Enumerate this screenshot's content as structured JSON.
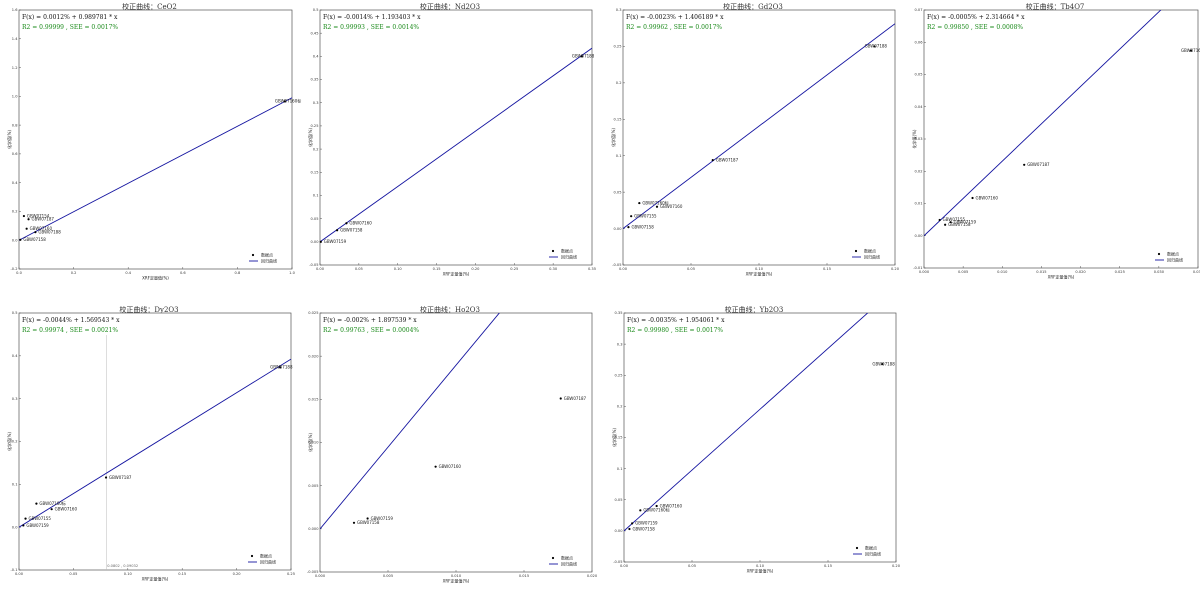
{
  "legend": {
    "points_label": "数据点",
    "line_label": "回归曲线"
  },
  "colors": {
    "line": "#1414a0",
    "formula": "#111111",
    "stats": "#1a8a1a",
    "frame": "#555555",
    "point": "#000000"
  },
  "chart_data": [
    {
      "type": "scatter",
      "title": "校正曲线：CeO2",
      "formula": "F(x) = 0.0012% + 0.989781 * x",
      "stats": "R2 = 0.99999 , SEE = 0.0017%",
      "xlabel": "XRF定量值(%)",
      "ylabel": "化学值(%)",
      "xlim": [
        0,
        1.0
      ],
      "ylim": [
        -0.2,
        1.6
      ],
      "xticks": [
        "0.0",
        "0.2",
        "0.4",
        "0.6",
        "0.8",
        "1.0"
      ],
      "yticks": [
        "-0.2",
        "0.0",
        "0.2",
        "0.4",
        "0.6",
        "0.8",
        "1.0",
        "1.2",
        "1.4",
        "1.6"
      ],
      "line": {
        "intercept": 0.0012,
        "slope": 0.989781
      },
      "points": [
        {
          "label": "GBW07154",
          "x": 0.018,
          "y": 0.168
        },
        {
          "label": "GBW07187",
          "x": 0.035,
          "y": 0.146
        },
        {
          "label": "GBW07160",
          "x": 0.028,
          "y": 0.08
        },
        {
          "label": "GBW07188",
          "x": 0.06,
          "y": 0.056
        },
        {
          "label": "GBW07158",
          "x": 0.005,
          "y": 0.003
        },
        {
          "label": "GBW07160标",
          "x": 0.974,
          "y": 0.965
        }
      ]
    },
    {
      "type": "scatter",
      "title": "校正曲线：Nd2O3",
      "formula": "F(x) = -0.0014% + 1.193403 * x",
      "stats": "R2 = 0.99993 , SEE = 0.0014%",
      "xlabel": "XRF定量值(%)",
      "ylabel": "化学值(%)",
      "xlim": [
        0,
        0.35
      ],
      "ylim": [
        -0.05,
        0.5
      ],
      "xticks": [
        "0.00",
        "0.05",
        "0.10",
        "0.15",
        "0.20",
        "0.25",
        "0.30",
        "0.35"
      ],
      "yticks": [
        "-0.05",
        "0.00",
        "0.05",
        "0.1",
        "0.15",
        "0.2",
        "0.25",
        "0.3",
        "0.35",
        "0.4",
        "0.45",
        "0.5"
      ],
      "line": {
        "intercept": -0.0014,
        "slope": 1.193403
      },
      "points": [
        {
          "label": "GBW07158",
          "x": 0.022,
          "y": 0.025
        },
        {
          "label": "GBW07160",
          "x": 0.034,
          "y": 0.04
        },
        {
          "label": "GBW07159",
          "x": 0.001,
          "y": 0.0
        },
        {
          "label": "GBW07188",
          "x": 0.337,
          "y": 0.4
        }
      ]
    },
    {
      "type": "scatter",
      "title": "校正曲线：Gd2O3",
      "formula": "F(x) = -0.0023% + 1.406189 * x",
      "stats": "R2 = 0.99962 , SEE = 0.0017%",
      "xlabel": "XRF定量值(%)",
      "ylabel": "化学值(%)",
      "xlim": [
        0,
        0.2
      ],
      "ylim": [
        -0.05,
        0.3
      ],
      "xticks": [
        "0.00",
        "0.05",
        "0.10",
        "0.15",
        "0.20"
      ],
      "yticks": [
        "-0.05",
        "0.00",
        "0.05",
        "0.1",
        "0.15",
        "0.2",
        "0.25",
        "0.3"
      ],
      "line": {
        "intercept": -0.0023,
        "slope": 1.406189
      },
      "points": [
        {
          "label": "GBW07188",
          "x": 0.185,
          "y": 0.25
        },
        {
          "label": "GBW07187",
          "x": 0.066,
          "y": 0.094
        },
        {
          "label": "GBW07160标",
          "x": 0.012,
          "y": 0.035
        },
        {
          "label": "GBW07160",
          "x": 0.025,
          "y": 0.03
        },
        {
          "label": "GBW07155",
          "x": 0.006,
          "y": 0.017
        },
        {
          "label": "GBW07158",
          "x": 0.004,
          "y": 0.002
        }
      ]
    },
    {
      "type": "scatter",
      "title": "校正曲线：Tb4O7",
      "formula": "F(x) = -0.0005% + 2.314664 * x",
      "stats": "R2 = 0.99850 , SEE = 0.0008%",
      "xlabel": "XRF定量值(%)",
      "ylabel": "化学值(%)",
      "xlim": [
        0,
        0.035
      ],
      "ylim": [
        -0.01,
        0.07
      ],
      "xticks": [
        "0.000",
        "0.005",
        "0.010",
        "0.015",
        "0.020",
        "0.025",
        "0.030",
        "0.035"
      ],
      "yticks": [
        "-0.01",
        "0.00",
        "0.01",
        "0.02",
        "0.03",
        "0.04",
        "0.05",
        "0.06",
        "0.07"
      ],
      "line": {
        "intercept": -0.0005,
        "slope": 2.314664
      },
      "points": [
        {
          "label": "GBW07160标",
          "x": 0.0341,
          "y": 0.0574
        },
        {
          "label": "GBW07187",
          "x": 0.0128,
          "y": 0.022
        },
        {
          "label": "GBW07160",
          "x": 0.0062,
          "y": 0.0117
        },
        {
          "label": "GBW07155",
          "x": 0.002,
          "y": 0.0049
        },
        {
          "label": "GBW07158",
          "x": 0.0027,
          "y": 0.0034
        },
        {
          "label": "GBW07159",
          "x": 0.0034,
          "y": 0.0042
        }
      ]
    },
    {
      "type": "scatter",
      "title": "校正曲线：Dy2O3",
      "formula": "F(x) = -0.0044% + 1.569543 * x",
      "stats": "R2 = 0.99974 , SEE = 0.0021%",
      "xlabel": "XRF定量值(%)",
      "ylabel": "化学值(%)",
      "xlim": [
        0,
        0.25
      ],
      "ylim": [
        -0.1,
        0.5
      ],
      "xticks": [
        "0.00",
        "0.05",
        "0.10",
        "0.15",
        "0.20",
        "0.25"
      ],
      "yticks": [
        "-0.1",
        "0.0",
        "0.1",
        "0.2",
        "0.3",
        "0.4",
        "0.5"
      ],
      "line": {
        "intercept": -0.0044,
        "slope": 1.569543
      },
      "annotation": "0.0802 , 0.09032",
      "annotation_x": 0.0802,
      "points": [
        {
          "label": "GBW07188",
          "x": 0.24,
          "y": 0.373
        },
        {
          "label": "GBW07187",
          "x": 0.08,
          "y": 0.116
        },
        {
          "label": "GBW07160标",
          "x": 0.016,
          "y": 0.055
        },
        {
          "label": "GBW07160",
          "x": 0.03,
          "y": 0.042
        },
        {
          "label": "GBW07155",
          "x": 0.006,
          "y": 0.02
        },
        {
          "label": "GBW07159",
          "x": 0.004,
          "y": 0.004
        }
      ]
    },
    {
      "type": "scatter",
      "title": "校正曲线：Ho2O3",
      "formula": "F(x) = -0.002% + 1.897539 * x",
      "stats": "R2 = 0.99763 , SEE = 0.0004%",
      "xlabel": "XRF定量值(%)",
      "ylabel": "化学值(%)",
      "xlim": [
        0,
        0.02
      ],
      "ylim": [
        -0.005,
        0.025
      ],
      "xticks": [
        "0.000",
        "0.005",
        "0.010",
        "0.015",
        "0.020"
      ],
      "yticks": [
        "-0.005",
        "0.000",
        "0.005",
        "0.010",
        "0.015",
        "0.020",
        "0.025"
      ],
      "line": {
        "intercept": -0.002,
        "slope": 1.897539
      },
      "points": [
        {
          "label": "GBW07187",
          "x": 0.0177,
          "y": 0.0151
        },
        {
          "label": "GBW07160",
          "x": 0.0085,
          "y": 0.0072
        },
        {
          "label": "GBW07159",
          "x": 0.0035,
          "y": 0.0012
        },
        {
          "label": "GBW07158",
          "x": 0.0025,
          "y": 0.0007
        }
      ]
    },
    {
      "type": "scatter",
      "title": "校正曲线：Yb2O3",
      "formula": "F(x) = -0.0035% + 1.954061 * x",
      "stats": "R2 = 0.99980 , SEE = 0.0017%",
      "xlabel": "XRF定量值(%)",
      "ylabel": "化学值(%)",
      "xlim": [
        0,
        0.2
      ],
      "ylim": [
        -0.05,
        0.35
      ],
      "xticks": [
        "0.00",
        "0.05",
        "0.10",
        "0.15",
        "0.20"
      ],
      "yticks": [
        "-0.05",
        "0.00",
        "0.05",
        "0.1",
        "0.15",
        "0.2",
        "0.25",
        "0.3",
        "0.35"
      ],
      "line": {
        "intercept": -0.0035,
        "slope": 1.954061
      },
      "points": [
        {
          "label": "GBW07188",
          "x": 0.19,
          "y": 0.268
        },
        {
          "label": "GBW07160",
          "x": 0.024,
          "y": 0.04
        },
        {
          "label": "GBW07160标",
          "x": 0.012,
          "y": 0.033
        },
        {
          "label": "GBW07159",
          "x": 0.006,
          "y": 0.012
        },
        {
          "label": "GBW07158",
          "x": 0.004,
          "y": 0.003
        }
      ]
    }
  ]
}
